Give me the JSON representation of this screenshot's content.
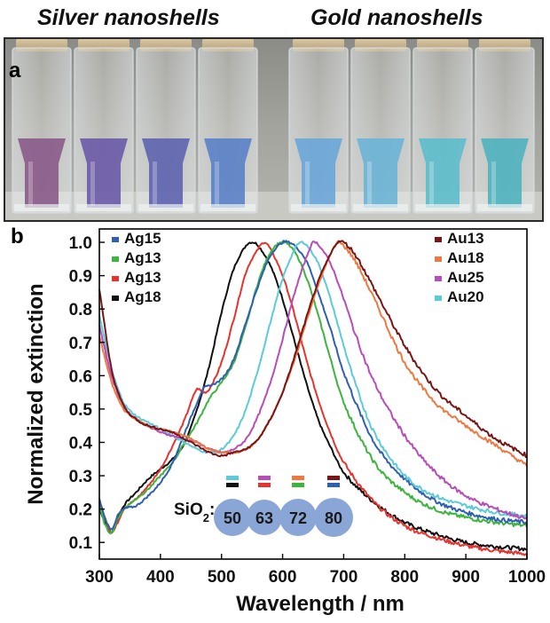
{
  "labels": {
    "silver": "Silver nanoshells",
    "gold": "Gold nanoshells",
    "panel_a": "a",
    "panel_b": "b",
    "sio2_prefix": "SiO",
    "sio2_sub": "2",
    "sio2_colon": ":"
  },
  "photo": {
    "cuvettes": [
      {
        "liquid": "#8a5a8a"
      },
      {
        "liquid": "#6a5aa8"
      },
      {
        "liquid": "#5e64b0"
      },
      {
        "liquid": "#5a82c8"
      },
      {
        "liquid": "#6aa6d8"
      },
      {
        "liquid": "#6ab4d6"
      },
      {
        "liquid": "#5cbccc"
      },
      {
        "liquid": "#4eb2c0"
      }
    ]
  },
  "chart_data": {
    "type": "line",
    "xlabel": "Wavelength / nm",
    "ylabel": "Normalized extinction",
    "xlim": [
      300,
      1000
    ],
    "ylim": [
      0.05,
      1.04
    ],
    "xticks": [
      300,
      400,
      500,
      600,
      700,
      800,
      900,
      1000
    ],
    "yticks": [
      0.1,
      0.2,
      0.3,
      0.4,
      0.5,
      0.6,
      0.7,
      0.8,
      0.9,
      1.0
    ],
    "grid": false,
    "legend_left": [
      {
        "name": "Ag15",
        "color": "#2e5fb5"
      },
      {
        "name": "Ag13",
        "color": "#3cb53c"
      },
      {
        "name": "Ag13",
        "color": "#e8322e"
      },
      {
        "name": "Ag18",
        "color": "#111111"
      }
    ],
    "legend_right": [
      {
        "name": "Au13",
        "color": "#7a1515"
      },
      {
        "name": "Au18",
        "color": "#f07840"
      },
      {
        "name": "Au25",
        "color": "#b84cb8"
      },
      {
        "name": "Au20",
        "color": "#5ccbd8"
      }
    ],
    "sio2_sizes": [
      {
        "label": "50",
        "top_color": "#5ccbd8",
        "bottom_color": "#111111"
      },
      {
        "label": "63",
        "top_color": "#b84cb8",
        "bottom_color": "#e8322e"
      },
      {
        "label": "72",
        "top_color": "#f07840",
        "bottom_color": "#3cb53c"
      },
      {
        "label": "80",
        "top_color": "#7a1515",
        "bottom_color": "#2e5fb5"
      }
    ],
    "series": [
      {
        "color": "#111111",
        "x": [
          300,
          310,
          320,
          330,
          340,
          360,
          380,
          400,
          420,
          440,
          460,
          480,
          500,
          520,
          540,
          550,
          560,
          580,
          600,
          620,
          640,
          660,
          680,
          700,
          750,
          800,
          850,
          900,
          950,
          1000
        ],
        "y": [
          0.2,
          0.16,
          0.13,
          0.17,
          0.21,
          0.25,
          0.29,
          0.32,
          0.35,
          0.4,
          0.5,
          0.63,
          0.79,
          0.92,
          0.99,
          1.0,
          0.99,
          0.93,
          0.83,
          0.7,
          0.57,
          0.46,
          0.38,
          0.31,
          0.22,
          0.16,
          0.125,
          0.1,
          0.088,
          0.08
        ]
      },
      {
        "color": "#e8322e",
        "x": [
          300,
          310,
          320,
          330,
          340,
          360,
          380,
          400,
          420,
          440,
          450,
          460,
          470,
          480,
          500,
          520,
          540,
          560,
          570,
          580,
          600,
          620,
          640,
          660,
          680,
          700,
          750,
          800,
          850,
          900,
          950,
          1000
        ],
        "y": [
          0.22,
          0.17,
          0.13,
          0.16,
          0.2,
          0.23,
          0.27,
          0.32,
          0.39,
          0.47,
          0.52,
          0.56,
          0.55,
          0.56,
          0.64,
          0.77,
          0.91,
          0.98,
          1.0,
          0.98,
          0.9,
          0.78,
          0.64,
          0.52,
          0.42,
          0.34,
          0.22,
          0.15,
          0.115,
          0.09,
          0.075,
          0.065
        ]
      },
      {
        "color": "#3cb53c",
        "x": [
          300,
          310,
          320,
          330,
          340,
          360,
          380,
          400,
          420,
          440,
          460,
          480,
          500,
          520,
          540,
          560,
          580,
          600,
          620,
          640,
          660,
          680,
          700,
          750,
          800,
          850,
          900,
          950,
          1000
        ],
        "y": [
          0.21,
          0.15,
          0.13,
          0.17,
          0.2,
          0.23,
          0.26,
          0.3,
          0.34,
          0.4,
          0.46,
          0.53,
          0.58,
          0.64,
          0.75,
          0.88,
          0.97,
          1.0,
          0.97,
          0.89,
          0.77,
          0.64,
          0.52,
          0.34,
          0.25,
          0.2,
          0.175,
          0.16,
          0.15
        ]
      },
      {
        "color": "#2e5fb5",
        "x": [
          300,
          310,
          320,
          330,
          340,
          360,
          380,
          400,
          420,
          440,
          460,
          470,
          480,
          500,
          520,
          540,
          560,
          580,
          600,
          610,
          620,
          640,
          660,
          680,
          700,
          750,
          800,
          850,
          900,
          950,
          1000
        ],
        "y": [
          0.23,
          0.17,
          0.14,
          0.18,
          0.2,
          0.21,
          0.24,
          0.28,
          0.34,
          0.43,
          0.52,
          0.56,
          0.57,
          0.59,
          0.65,
          0.76,
          0.87,
          0.96,
          1.0,
          1.0,
          0.99,
          0.94,
          0.84,
          0.73,
          0.61,
          0.4,
          0.29,
          0.225,
          0.19,
          0.17,
          0.16
        ]
      },
      {
        "color": "#5ccbd8",
        "x": [
          300,
          320,
          340,
          360,
          380,
          400,
          420,
          440,
          460,
          480,
          500,
          520,
          540,
          560,
          580,
          600,
          620,
          630,
          640,
          660,
          680,
          700,
          720,
          750,
          800,
          850,
          900,
          950,
          1000
        ],
        "y": [
          0.78,
          0.62,
          0.52,
          0.48,
          0.46,
          0.44,
          0.42,
          0.4,
          0.38,
          0.37,
          0.38,
          0.42,
          0.5,
          0.62,
          0.76,
          0.89,
          0.98,
          1.0,
          0.99,
          0.93,
          0.82,
          0.69,
          0.57,
          0.43,
          0.3,
          0.24,
          0.21,
          0.19,
          0.18
        ]
      },
      {
        "color": "#b84cb8",
        "x": [
          300,
          320,
          340,
          360,
          380,
          400,
          420,
          440,
          460,
          480,
          500,
          520,
          540,
          560,
          580,
          600,
          620,
          640,
          650,
          660,
          680,
          700,
          720,
          750,
          800,
          850,
          900,
          950,
          1000
        ],
        "y": [
          0.75,
          0.6,
          0.51,
          0.47,
          0.45,
          0.43,
          0.42,
          0.41,
          0.4,
          0.38,
          0.37,
          0.38,
          0.41,
          0.48,
          0.58,
          0.71,
          0.85,
          0.96,
          1.0,
          0.99,
          0.93,
          0.83,
          0.72,
          0.58,
          0.42,
          0.31,
          0.24,
          0.2,
          0.17
        ]
      },
      {
        "color": "#f07840",
        "x": [
          300,
          320,
          340,
          360,
          380,
          400,
          420,
          440,
          460,
          480,
          500,
          520,
          540,
          560,
          580,
          600,
          620,
          640,
          660,
          680,
          690,
          700,
          720,
          750,
          800,
          850,
          900,
          950,
          1000
        ],
        "y": [
          0.72,
          0.58,
          0.5,
          0.47,
          0.45,
          0.44,
          0.43,
          0.42,
          0.4,
          0.38,
          0.37,
          0.37,
          0.38,
          0.41,
          0.47,
          0.55,
          0.65,
          0.77,
          0.88,
          0.97,
          1.0,
          0.99,
          0.94,
          0.83,
          0.64,
          0.52,
          0.45,
          0.39,
          0.33
        ]
      },
      {
        "color": "#7a1515",
        "x": [
          300,
          320,
          340,
          360,
          380,
          400,
          420,
          440,
          460,
          480,
          500,
          520,
          540,
          560,
          580,
          600,
          620,
          640,
          660,
          680,
          690,
          700,
          720,
          750,
          800,
          850,
          900,
          950,
          1000
        ],
        "y": [
          0.86,
          0.62,
          0.51,
          0.47,
          0.45,
          0.44,
          0.43,
          0.41,
          0.39,
          0.37,
          0.36,
          0.37,
          0.38,
          0.41,
          0.47,
          0.55,
          0.66,
          0.78,
          0.89,
          0.97,
          1.0,
          1.0,
          0.96,
          0.86,
          0.69,
          0.56,
          0.48,
          0.41,
          0.36
        ]
      }
    ]
  }
}
